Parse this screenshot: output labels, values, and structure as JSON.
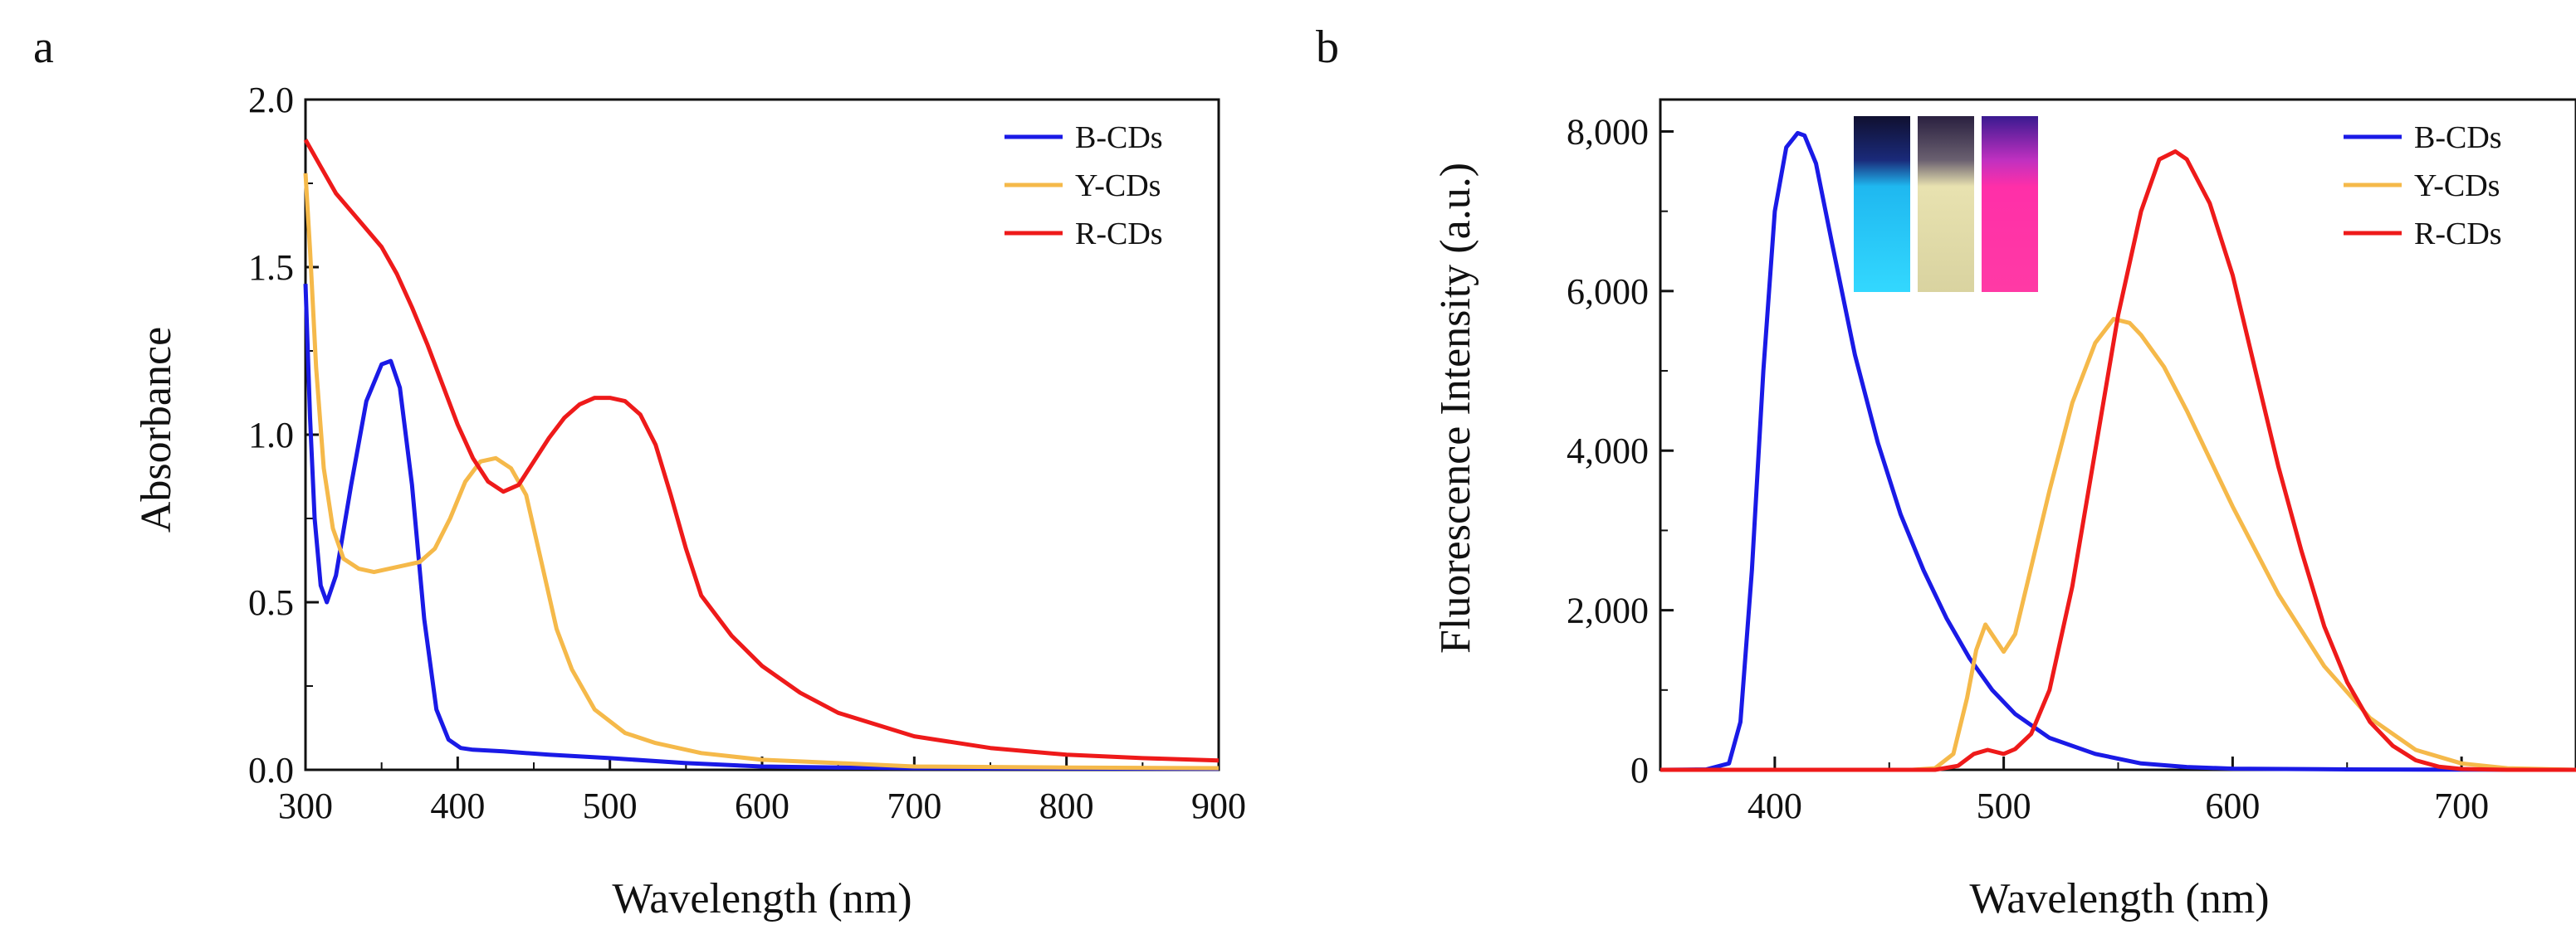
{
  "chart_data": [
    {
      "panel_label": "a",
      "type": "line",
      "xlabel": "Wavelength (nm)",
      "ylabel": "Absorbance",
      "xlim": [
        300,
        900
      ],
      "ylim": [
        0,
        2.0
      ],
      "xticks": [
        300,
        400,
        500,
        600,
        700,
        800,
        900
      ],
      "yticks": [
        "0.0",
        "0.5",
        "1.0",
        "1.5",
        "2.0"
      ],
      "legend": "top-right",
      "series": [
        {
          "name": "B-CDs",
          "color": "#1a1ae6",
          "x": [
            300,
            303,
            306,
            310,
            314,
            320,
            330,
            340,
            350,
            356,
            362,
            370,
            378,
            386,
            394,
            402,
            410,
            430,
            460,
            500,
            550,
            600,
            650,
            700,
            800,
            900
          ],
          "y": [
            1.45,
            1.05,
            0.75,
            0.55,
            0.5,
            0.58,
            0.85,
            1.1,
            1.21,
            1.22,
            1.14,
            0.85,
            0.45,
            0.18,
            0.09,
            0.065,
            0.06,
            0.055,
            0.045,
            0.035,
            0.02,
            0.01,
            0.007,
            0.005,
            0.004,
            0.003
          ]
        },
        {
          "name": "Y-CDs",
          "color": "#f5b94a",
          "x": [
            300,
            303,
            307,
            312,
            318,
            325,
            335,
            345,
            355,
            365,
            375,
            385,
            395,
            405,
            415,
            425,
            435,
            445,
            455,
            465,
            475,
            490,
            510,
            530,
            560,
            600,
            650,
            700,
            800,
            900
          ],
          "y": [
            1.78,
            1.55,
            1.2,
            0.9,
            0.72,
            0.63,
            0.6,
            0.59,
            0.6,
            0.61,
            0.62,
            0.66,
            0.75,
            0.86,
            0.92,
            0.93,
            0.9,
            0.82,
            0.62,
            0.42,
            0.3,
            0.18,
            0.11,
            0.08,
            0.05,
            0.03,
            0.02,
            0.01,
            0.007,
            0.005
          ]
        },
        {
          "name": "R-CDs",
          "color": "#ee1a1a",
          "x": [
            300,
            310,
            320,
            335,
            350,
            360,
            370,
            380,
            390,
            400,
            410,
            420,
            430,
            440,
            450,
            460,
            470,
            480,
            490,
            500,
            510,
            520,
            530,
            540,
            550,
            560,
            580,
            600,
            625,
            650,
            700,
            750,
            800,
            850,
            900
          ],
          "y": [
            1.88,
            1.8,
            1.72,
            1.64,
            1.56,
            1.48,
            1.38,
            1.27,
            1.15,
            1.03,
            0.93,
            0.86,
            0.83,
            0.85,
            0.92,
            0.99,
            1.05,
            1.09,
            1.11,
            1.11,
            1.1,
            1.06,
            0.97,
            0.82,
            0.66,
            0.52,
            0.4,
            0.31,
            0.23,
            0.17,
            0.1,
            0.065,
            0.045,
            0.035,
            0.028
          ]
        }
      ]
    },
    {
      "panel_label": "b",
      "type": "line",
      "xlabel": "Wavelength (nm)",
      "ylabel": "Fluorescence Intensity (a.u.)",
      "xlim": [
        350,
        750
      ],
      "ylim": [
        0,
        8400
      ],
      "xticks": [
        400,
        500,
        600,
        700
      ],
      "yticks": [
        "0",
        "2,000",
        "4,000",
        "6,000",
        "8,000"
      ],
      "legend": "top-right",
      "inset": "photo of three cuvettes under UV light (cyan, yellow, pink)",
      "series": [
        {
          "name": "B-CDs",
          "color": "#1a1ae6",
          "x": [
            350,
            370,
            380,
            385,
            390,
            395,
            400,
            405,
            410,
            413,
            418,
            425,
            435,
            445,
            455,
            465,
            475,
            485,
            495,
            505,
            520,
            540,
            560,
            580,
            600,
            650,
            700,
            750
          ],
          "y": [
            0,
            5,
            80,
            600,
            2500,
            5000,
            7000,
            7800,
            7980,
            7950,
            7600,
            6600,
            5200,
            4100,
            3200,
            2500,
            1900,
            1400,
            1000,
            700,
            400,
            200,
            80,
            35,
            15,
            5,
            2,
            0
          ]
        },
        {
          "name": "Y-CDs",
          "color": "#f5b94a",
          "x": [
            350,
            460,
            470,
            478,
            484,
            488,
            492,
            496,
            500,
            505,
            510,
            520,
            530,
            540,
            548,
            555,
            560,
            570,
            580,
            590,
            600,
            620,
            640,
            660,
            680,
            700,
            720,
            750
          ],
          "y": [
            0,
            0,
            20,
            200,
            900,
            1500,
            1820,
            1650,
            1480,
            1700,
            2300,
            3500,
            4600,
            5350,
            5650,
            5600,
            5450,
            5050,
            4500,
            3900,
            3300,
            2200,
            1300,
            650,
            250,
            80,
            20,
            0
          ]
        },
        {
          "name": "R-CDs",
          "color": "#ee1a1a",
          "x": [
            350,
            470,
            480,
            487,
            493,
            500,
            505,
            512,
            520,
            530,
            540,
            550,
            560,
            568,
            575,
            580,
            590,
            600,
            610,
            620,
            630,
            640,
            650,
            660,
            670,
            680,
            690,
            700,
            720,
            750
          ],
          "y": [
            0,
            0,
            50,
            200,
            250,
            200,
            260,
            450,
            1000,
            2300,
            4000,
            5700,
            7000,
            7650,
            7750,
            7650,
            7100,
            6200,
            5000,
            3800,
            2750,
            1800,
            1100,
            600,
            300,
            120,
            40,
            10,
            0,
            0
          ]
        }
      ]
    }
  ]
}
